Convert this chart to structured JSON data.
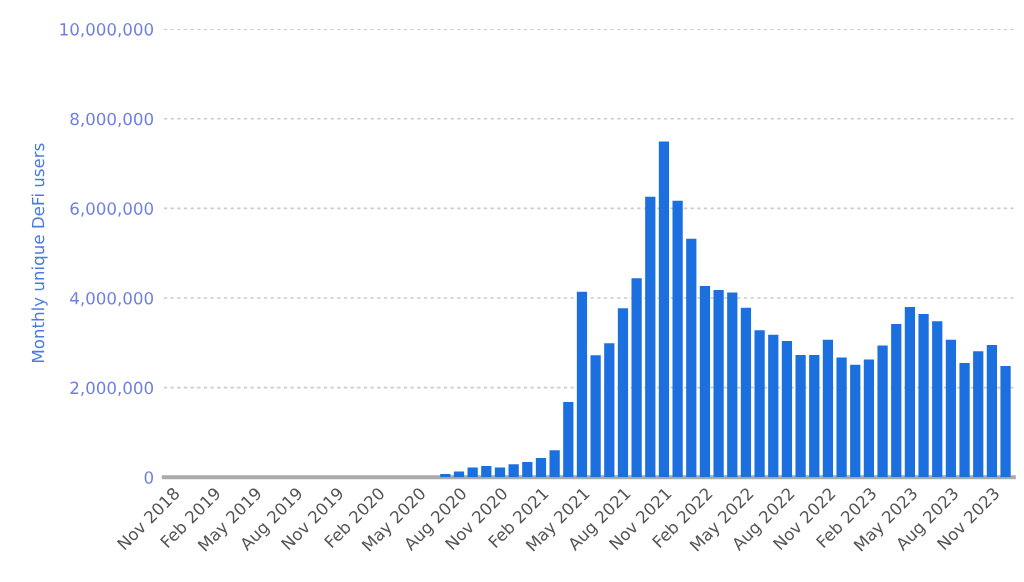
{
  "chart_data": {
    "type": "bar",
    "ylabel": "Monthly unique DeFi users",
    "categories": [
      "Nov 2018",
      null,
      null,
      "Feb 2019",
      null,
      null,
      "May 2019",
      null,
      null,
      "Aug 2019",
      null,
      null,
      "Nov 2019",
      null,
      null,
      "Feb 2020",
      null,
      null,
      "May 2020",
      null,
      null,
      "Aug 2020",
      null,
      null,
      "Nov 2020",
      null,
      null,
      "Feb 2021",
      null,
      null,
      "May 2021",
      null,
      null,
      "Aug 2021",
      null,
      null,
      "Nov 2021",
      null,
      null,
      "Feb 2022",
      null,
      null,
      "May 2022",
      null,
      null,
      "Aug 2022",
      null,
      null,
      "Nov 2022",
      null,
      null,
      "Feb 2023",
      null,
      null,
      "May 2023",
      null,
      null,
      "Aug 2023",
      null,
      null,
      "Nov 2023",
      null
    ],
    "values": [
      0,
      0,
      0,
      0,
      0,
      0,
      0,
      0,
      0,
      0,
      0,
      0,
      0,
      0,
      0,
      0,
      0,
      0,
      0,
      0,
      70000,
      130000,
      220000,
      250000,
      220000,
      290000,
      340000,
      430000,
      600000,
      1680000,
      4140000,
      2720000,
      2990000,
      3770000,
      4440000,
      6260000,
      7490000,
      6170000,
      5320000,
      4270000,
      4180000,
      4120000,
      3780000,
      3280000,
      3180000,
      3040000,
      2730000,
      2730000,
      3070000,
      2670000,
      2510000,
      2630000,
      2940000,
      3420000,
      3800000,
      3640000,
      3480000,
      3070000,
      2550000,
      2810000,
      2950000,
      2480000
    ],
    "color": "#1b6fde",
    "ylim": [
      0,
      10000000
    ],
    "yticks": [
      {
        "value": 0,
        "label": "0"
      },
      {
        "value": 2000000,
        "label": "2,000,000"
      },
      {
        "value": 4000000,
        "label": "4,000,000"
      },
      {
        "value": 6000000,
        "label": "6,000,000"
      },
      {
        "value": 8000000,
        "label": "8,000,000"
      },
      {
        "value": 10000000,
        "label": "10,000,000"
      }
    ],
    "grid": "y"
  }
}
